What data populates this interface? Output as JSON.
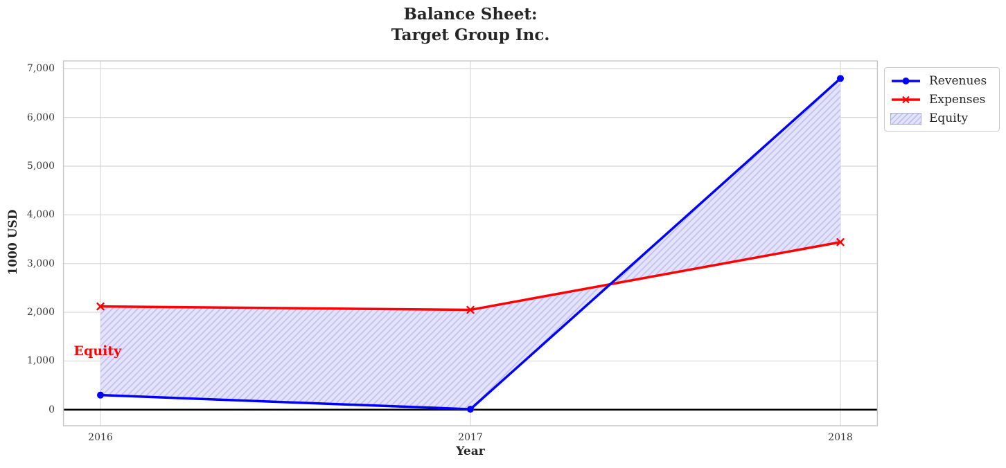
{
  "chart_data": {
    "type": "line",
    "title_lines": [
      "Balance Sheet:",
      "Target Group Inc."
    ],
    "xlabel": "Year",
    "ylabel": "1000 USD",
    "x": [
      2016,
      2017,
      2018
    ],
    "series": [
      {
        "name": "Revenues",
        "color": "#0000ff",
        "marker": "circle",
        "values": [
          300,
          10,
          6800
        ]
      },
      {
        "name": "Expenses",
        "color": "#ff0000",
        "marker": "x",
        "values": [
          2120,
          2050,
          3440
        ]
      }
    ],
    "area": {
      "name": "Equity",
      "between": [
        "Revenues",
        "Expenses"
      ],
      "fill_color": "#e3e3fb",
      "hatch_color": "#bdbdf0",
      "hatch": "///"
    },
    "annotation": {
      "text": "Equity",
      "x": 2015.928,
      "y": 1200,
      "color": "#ff0000"
    },
    "axhline": {
      "y": 0,
      "color": "#000000",
      "width": 2.5
    },
    "xlim": [
      2015.9,
      2018.1
    ],
    "ylim": [
      -330,
      7160
    ],
    "xticks": [
      {
        "v": 2016,
        "label": "2016"
      },
      {
        "v": 2017,
        "label": "2017"
      },
      {
        "v": 2018,
        "label": "2018"
      }
    ],
    "yticks": [
      {
        "v": 0,
        "label": "0"
      },
      {
        "v": 1000,
        "label": "1,000"
      },
      {
        "v": 2000,
        "label": "2,000"
      },
      {
        "v": 3000,
        "label": "3,000"
      },
      {
        "v": 4000,
        "label": "4,000"
      },
      {
        "v": 5000,
        "label": "5,000"
      },
      {
        "v": 6000,
        "label": "6,000"
      },
      {
        "v": 7000,
        "label": "7,000"
      }
    ],
    "grid": true,
    "legend": {
      "position": "outside-upper-right",
      "entries": [
        "Revenues",
        "Expenses",
        "Equity"
      ]
    }
  },
  "style_colors": {
    "grid": "#d8d8d8",
    "spine": "#c6c6c6",
    "text": "#262626",
    "tick_text": "#383838"
  }
}
